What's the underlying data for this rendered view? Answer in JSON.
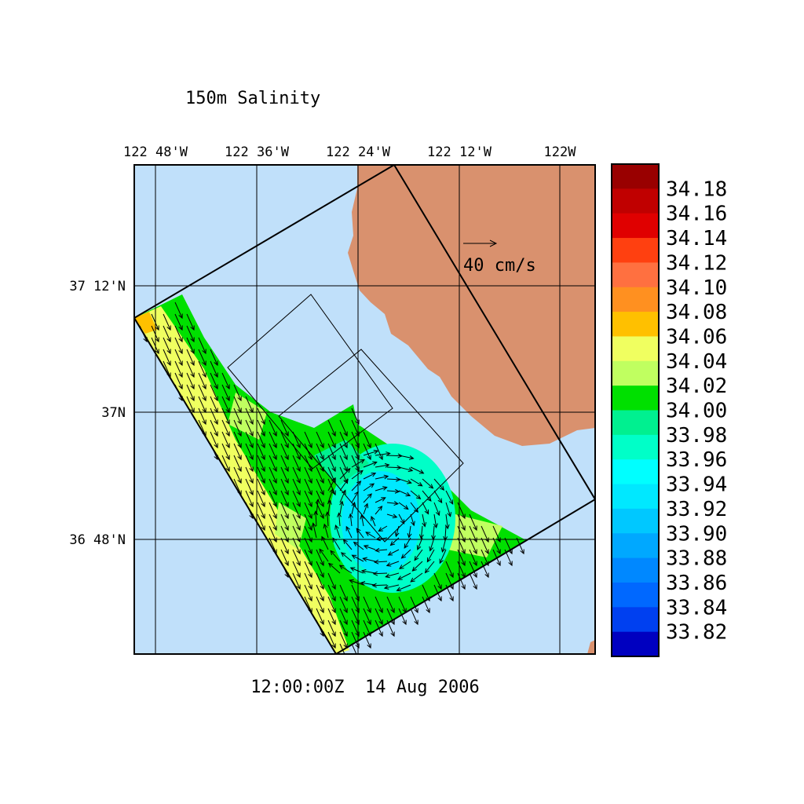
{
  "title": "150m Salinity",
  "lon_labels": [
    "122 48'W",
    "122 36'W",
    "122 24'W",
    "122 12'W",
    "122W"
  ],
  "lat_labels": [
    "37 12'N",
    "37N",
    "36 48'N"
  ],
  "vector_scale": "40 cm/s",
  "timestamp": "12:00:00Z  14 Aug 2006",
  "colorbar": {
    "labels": [
      "34.18",
      "34.16",
      "34.14",
      "34.12",
      "34.10",
      "34.08",
      "34.06",
      "34.04",
      "34.02",
      "34.00",
      "33.98",
      "33.96",
      "33.94",
      "33.92",
      "33.90",
      "33.88",
      "33.86",
      "33.84",
      "33.82"
    ],
    "colors": [
      "#990000",
      "#c00000",
      "#e00000",
      "#ff4010",
      "#ff7040",
      "#ff9020",
      "#ffc000",
      "#f0ff60",
      "#c0ff60",
      "#00e000",
      "#00f090",
      "#00ffc8",
      "#00ffff",
      "#00e8ff",
      "#00c8ff",
      "#00a8ff",
      "#0088ff",
      "#0068ff",
      "#0040f0",
      "#0000c0"
    ]
  }
}
